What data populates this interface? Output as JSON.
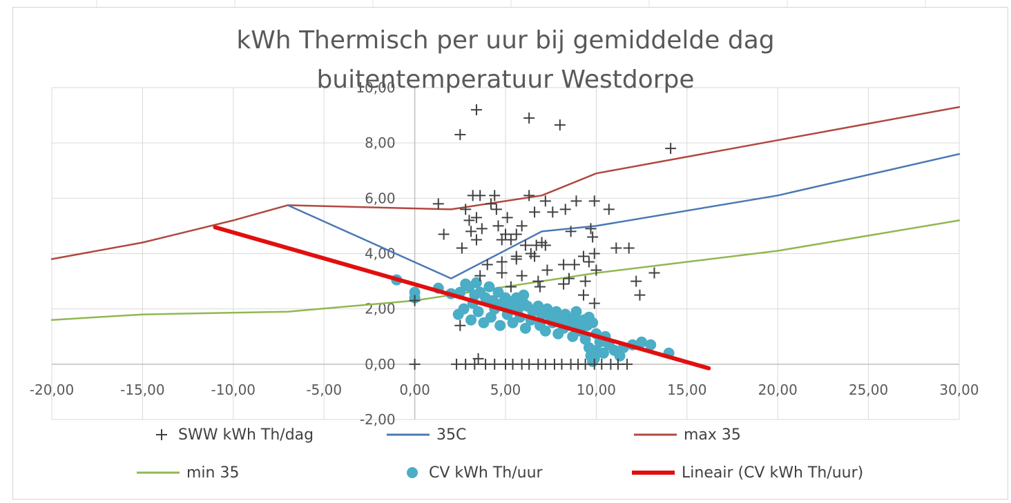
{
  "chart_data": {
    "type": "scatter",
    "title_lines": [
      "kWh Thermisch per uur bij gemiddelde dag",
      "buitentemperatuur Westdorpe"
    ],
    "xlim": [
      -20,
      30
    ],
    "ylim": [
      -2,
      10
    ],
    "x_ticks": [
      "-20,00",
      "-15,00",
      "-10,00",
      "-5,00",
      "0,00",
      "5,00",
      "10,00",
      "15,00",
      "20,00",
      "25,00",
      "30,00"
    ],
    "y_ticks": [
      "-2,00",
      "0,00",
      "2,00",
      "4,00",
      "6,00",
      "8,00",
      "10,00"
    ],
    "grid": true,
    "legend_position": "bottom",
    "legend": [
      {
        "key": "sww",
        "label": "SWW kWh Th/dag",
        "marker": "plus",
        "color": "#404040"
      },
      {
        "key": "c35",
        "label": "35C",
        "marker": "line",
        "color": "#4a78b4"
      },
      {
        "key": "max35",
        "label": "max 35",
        "marker": "line",
        "color": "#b0483f"
      },
      {
        "key": "min35",
        "label": "min 35",
        "marker": "line",
        "color": "#8fb84f"
      },
      {
        "key": "cv",
        "label": "CV kWh Th/uur",
        "marker": "circle",
        "color": "#4badc6"
      },
      {
        "key": "trend",
        "label": "Lineair (CV kWh Th/uur)",
        "marker": "thickline",
        "color": "#e01010"
      }
    ],
    "series": {
      "max35": {
        "name": "max 35",
        "type": "line",
        "color": "#b0483f",
        "points": [
          [
            -20,
            3.8
          ],
          [
            -15,
            4.4
          ],
          [
            -10,
            5.2
          ],
          [
            -7,
            5.75
          ],
          [
            2,
            5.6
          ],
          [
            7,
            6.1
          ],
          [
            10,
            6.9
          ],
          [
            20,
            8.1
          ],
          [
            30,
            9.3
          ]
        ]
      },
      "c35": {
        "name": "35C",
        "type": "line",
        "color": "#4a78b4",
        "points": [
          [
            -7,
            5.75
          ],
          [
            2,
            3.1
          ],
          [
            7,
            4.8
          ],
          [
            10,
            5.0
          ],
          [
            20,
            6.1
          ],
          [
            30,
            7.6
          ]
        ]
      },
      "min35": {
        "name": "min 35",
        "type": "line",
        "color": "#8fb84f",
        "points": [
          [
            -20,
            1.6
          ],
          [
            -15,
            1.8
          ],
          [
            -7,
            1.9
          ],
          [
            0,
            2.3
          ],
          [
            10,
            3.3
          ],
          [
            20,
            4.1
          ],
          [
            30,
            5.2
          ]
        ]
      },
      "trend": {
        "name": "Lineair (CV kWh Th/uur)",
        "type": "line",
        "color": "#e01010",
        "points": [
          [
            -11,
            4.95
          ],
          [
            16.2,
            -0.15
          ]
        ]
      },
      "sww": {
        "name": "SWW kWh Th/dag",
        "type": "scatter",
        "marker": "plus",
        "color": "#404040",
        "points": [
          [
            3.4,
            9.2
          ],
          [
            2.5,
            8.3
          ],
          [
            6.3,
            8.9
          ],
          [
            8.0,
            8.65
          ],
          [
            14.1,
            7.8
          ],
          [
            3.2,
            6.1
          ],
          [
            3.6,
            6.1
          ],
          [
            4.4,
            6.1
          ],
          [
            6.3,
            6.1
          ],
          [
            1.3,
            5.8
          ],
          [
            2.8,
            5.6
          ],
          [
            4.2,
            5.8
          ],
          [
            4.5,
            5.6
          ],
          [
            7.2,
            5.9
          ],
          [
            8.9,
            5.9
          ],
          [
            9.9,
            5.9
          ],
          [
            3.0,
            5.2
          ],
          [
            3.4,
            5.3
          ],
          [
            5.1,
            5.3
          ],
          [
            5.9,
            5.0
          ],
          [
            6.6,
            5.5
          ],
          [
            7.6,
            5.5
          ],
          [
            8.3,
            5.6
          ],
          [
            10.7,
            5.6
          ],
          [
            1.6,
            4.7
          ],
          [
            3.1,
            4.8
          ],
          [
            3.7,
            4.9
          ],
          [
            4.6,
            5.0
          ],
          [
            5.0,
            4.7
          ],
          [
            5.6,
            4.7
          ],
          [
            6.7,
            4.3
          ],
          [
            7.0,
            4.4
          ],
          [
            8.6,
            4.8
          ],
          [
            9.7,
            4.9
          ],
          [
            9.8,
            4.6
          ],
          [
            2.6,
            4.2
          ],
          [
            3.4,
            4.5
          ],
          [
            4.8,
            4.5
          ],
          [
            5.3,
            4.5
          ],
          [
            5.6,
            3.9
          ],
          [
            6.1,
            4.3
          ],
          [
            6.4,
            4.0
          ],
          [
            6.6,
            3.9
          ],
          [
            7.2,
            4.3
          ],
          [
            9.3,
            3.9
          ],
          [
            9.9,
            4.0
          ],
          [
            11.1,
            4.2
          ],
          [
            11.8,
            4.2
          ],
          [
            4.0,
            3.6
          ],
          [
            4.8,
            3.7
          ],
          [
            5.6,
            3.8
          ],
          [
            7.3,
            3.4
          ],
          [
            8.2,
            3.6
          ],
          [
            8.8,
            3.6
          ],
          [
            9.6,
            3.7
          ],
          [
            10.0,
            3.4
          ],
          [
            3.6,
            3.2
          ],
          [
            4.8,
            3.3
          ],
          [
            5.9,
            3.2
          ],
          [
            6.8,
            3.0
          ],
          [
            8.5,
            3.1
          ],
          [
            9.4,
            3.0
          ],
          [
            12.2,
            3.0
          ],
          [
            13.2,
            3.3
          ],
          [
            5.3,
            2.8
          ],
          [
            6.9,
            2.8
          ],
          [
            8.2,
            2.9
          ],
          [
            9.3,
            2.5
          ],
          [
            12.4,
            2.5
          ],
          [
            9.9,
            2.2
          ],
          [
            0.0,
            2.3
          ],
          [
            2.5,
            1.4
          ],
          [
            3.5,
            0.2
          ],
          [
            0.0,
            0.0
          ],
          [
            2.3,
            0.0
          ],
          [
            2.8,
            0.0
          ],
          [
            3.3,
            0.0
          ],
          [
            3.9,
            0.0
          ],
          [
            4.4,
            0.0
          ],
          [
            5.0,
            0.0
          ],
          [
            5.4,
            0.0
          ],
          [
            5.9,
            0.0
          ],
          [
            6.3,
            0.0
          ],
          [
            6.8,
            0.0
          ],
          [
            7.2,
            0.0
          ],
          [
            7.7,
            0.0
          ],
          [
            8.1,
            0.0
          ],
          [
            8.6,
            0.0
          ],
          [
            9.0,
            0.0
          ],
          [
            9.4,
            0.0
          ],
          [
            9.9,
            0.0
          ],
          [
            10.3,
            0.0
          ],
          [
            10.8,
            0.0
          ],
          [
            11.2,
            0.0
          ],
          [
            11.7,
            0.0
          ]
        ]
      },
      "cv": {
        "name": "CV kWh Th/uur",
        "type": "scatter",
        "marker": "circle",
        "color": "#4badc6",
        "points": [
          [
            -1.0,
            3.05
          ],
          [
            0.0,
            2.6
          ],
          [
            0.0,
            2.4
          ],
          [
            1.3,
            2.75
          ],
          [
            2.0,
            2.55
          ],
          [
            2.5,
            2.6
          ],
          [
            2.8,
            2.9
          ],
          [
            3.0,
            2.8
          ],
          [
            3.3,
            2.5
          ],
          [
            3.4,
            2.95
          ],
          [
            3.6,
            2.6
          ],
          [
            3.9,
            2.4
          ],
          [
            4.1,
            2.8
          ],
          [
            4.3,
            2.3
          ],
          [
            4.6,
            2.6
          ],
          [
            4.8,
            2.2
          ],
          [
            5.0,
            2.4
          ],
          [
            5.2,
            2.1
          ],
          [
            5.5,
            2.3
          ],
          [
            5.7,
            2.0
          ],
          [
            6.0,
            2.2
          ],
          [
            6.2,
            2.1
          ],
          [
            6.5,
            1.9
          ],
          [
            6.8,
            2.1
          ],
          [
            7.0,
            1.8
          ],
          [
            7.3,
            2.0
          ],
          [
            7.5,
            1.7
          ],
          [
            7.8,
            1.9
          ],
          [
            8.0,
            1.6
          ],
          [
            8.3,
            1.8
          ],
          [
            8.5,
            1.5
          ],
          [
            8.8,
            1.7
          ],
          [
            9.0,
            1.4
          ],
          [
            9.3,
            1.6
          ],
          [
            9.5,
            1.4
          ],
          [
            9.8,
            1.5
          ],
          [
            2.4,
            1.8
          ],
          [
            2.7,
            2.0
          ],
          [
            3.1,
            1.6
          ],
          [
            3.5,
            1.9
          ],
          [
            3.8,
            1.5
          ],
          [
            4.2,
            1.7
          ],
          [
            4.7,
            1.4
          ],
          [
            5.1,
            1.8
          ],
          [
            5.4,
            1.5
          ],
          [
            5.8,
            1.7
          ],
          [
            6.1,
            1.3
          ],
          [
            6.4,
            1.6
          ],
          [
            6.9,
            1.4
          ],
          [
            7.2,
            1.2
          ],
          [
            7.6,
            1.5
          ],
          [
            7.9,
            1.1
          ],
          [
            8.2,
            1.3
          ],
          [
            8.7,
            1.0
          ],
          [
            9.1,
            1.2
          ],
          [
            9.4,
            0.9
          ],
          [
            9.6,
            0.6
          ],
          [
            9.7,
            0.3
          ],
          [
            9.8,
            0.1
          ],
          [
            9.9,
            0.2
          ],
          [
            10.0,
            0.5
          ],
          [
            10.2,
            0.8
          ],
          [
            10.4,
            0.4
          ],
          [
            10.7,
            0.7
          ],
          [
            11.0,
            0.5
          ],
          [
            11.3,
            0.3
          ],
          [
            11.5,
            0.6
          ],
          [
            12.0,
            0.7
          ],
          [
            12.5,
            0.8
          ],
          [
            13.0,
            0.7
          ],
          [
            14.0,
            0.4
          ],
          [
            8.9,
            1.9
          ],
          [
            9.6,
            1.7
          ],
          [
            10.0,
            1.1
          ],
          [
            10.5,
            1.0
          ],
          [
            6.0,
            2.5
          ],
          [
            5.6,
            2.4
          ],
          [
            4.4,
            2.0
          ],
          [
            3.2,
            2.2
          ]
        ]
      }
    }
  }
}
